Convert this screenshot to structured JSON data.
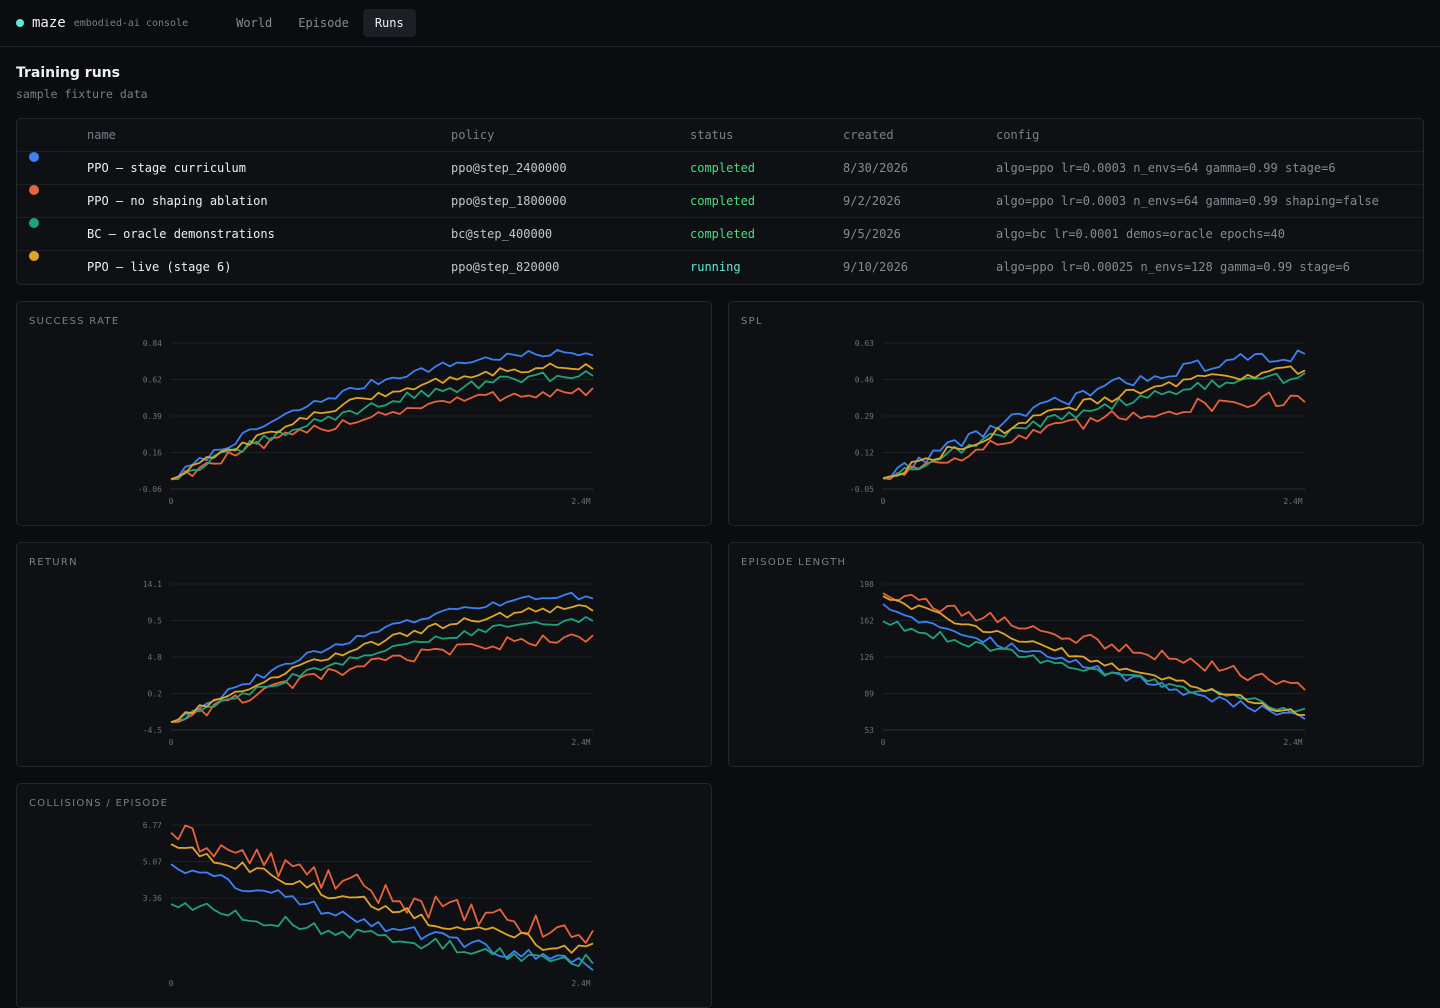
{
  "app": {
    "name": "maze",
    "subtitle": "embodied-ai console"
  },
  "nav": {
    "tabs": [
      {
        "label": "World"
      },
      {
        "label": "Episode"
      },
      {
        "label": "Runs",
        "active": true
      }
    ]
  },
  "page": {
    "title": "Training runs",
    "subtitle": "sample fixture data"
  },
  "table": {
    "columns": {
      "name": "name",
      "policy": "policy",
      "status": "status",
      "created": "created",
      "config": "config"
    },
    "rows": [
      {
        "color": "#3b82f6",
        "name": "PPO — stage curriculum",
        "policy": "ppo@step_2400000",
        "status": "completed",
        "created": "8/30/2026",
        "config": "algo=ppo lr=0.0003 n_envs=64 gamma=0.99 stage=6"
      },
      {
        "color": "#e8633a",
        "name": "PPO — no shaping ablation",
        "policy": "ppo@step_1800000",
        "status": "completed",
        "created": "9/2/2026",
        "config": "algo=ppo lr=0.0003 n_envs=64 gamma=0.99 shaping=false"
      },
      {
        "color": "#1fa37a",
        "name": "BC — oracle demonstrations",
        "policy": "bc@step_400000",
        "status": "completed",
        "created": "9/5/2026",
        "config": "algo=bc lr=0.0001 demos=oracle epochs=40"
      },
      {
        "color": "#e0a526",
        "name": "PPO — live (stage 6)",
        "policy": "ppo@step_820000",
        "status": "running",
        "created": "9/10/2026",
        "config": "algo=ppo lr=0.00025 n_envs=128 gamma=0.99 stage=6"
      }
    ],
    "status_colors": {
      "completed": "#4ade80",
      "running": "#5eead4"
    }
  },
  "chart_data": [
    {
      "type": "line",
      "title": "SUCCESS RATE",
      "ylim": [
        -0.06,
        0.84
      ],
      "yticks": [
        "0.84",
        "0.62",
        "0.39",
        "0.16",
        "-0.06"
      ],
      "xticks": [
        "0",
        "2.4M"
      ],
      "xlim": [
        0,
        2.4
      ],
      "series": [
        {
          "color": "#3b82f6",
          "start": 0.0,
          "end": 0.78,
          "curve": 2.2,
          "noise": 0.008
        },
        {
          "color": "#e8633a",
          "start": 0.0,
          "end": 0.54,
          "curve": 2.0,
          "noise": 0.012
        },
        {
          "color": "#1fa37a",
          "start": 0.0,
          "end": 0.64,
          "curve": 1.9,
          "noise": 0.01
        },
        {
          "color": "#e0a526",
          "start": 0.0,
          "end": 0.7,
          "curve": 2.0,
          "noise": 0.008
        }
      ]
    },
    {
      "type": "line",
      "title": "SPL",
      "ylim": [
        -0.05,
        0.63
      ],
      "yticks": [
        "0.63",
        "0.46",
        "0.29",
        "0.12",
        "-0.05"
      ],
      "xticks": [
        "0",
        "2.4M"
      ],
      "xlim": [
        0,
        2.4
      ],
      "series": [
        {
          "color": "#3b82f6",
          "start": 0.0,
          "end": 0.57,
          "curve": 1.8,
          "noise": 0.01
        },
        {
          "color": "#e8633a",
          "start": 0.0,
          "end": 0.37,
          "curve": 1.8,
          "noise": 0.012
        },
        {
          "color": "#1fa37a",
          "start": 0.0,
          "end": 0.47,
          "curve": 1.7,
          "noise": 0.008
        },
        {
          "color": "#e0a526",
          "start": 0.0,
          "end": 0.5,
          "curve": 1.8,
          "noise": 0.008
        }
      ]
    },
    {
      "type": "line",
      "title": "RETURN",
      "ylim": [
        -4.5,
        14.1
      ],
      "yticks": [
        "14.1",
        "9.5",
        "4.8",
        "0.2",
        "-4.5"
      ],
      "xticks": [
        "0",
        "2.4M"
      ],
      "xlim": [
        0,
        2.4
      ],
      "series": [
        {
          "color": "#3b82f6",
          "start": -3.5,
          "end": 12.6,
          "curve": 1.9,
          "noise": 0.15
        },
        {
          "color": "#e8633a",
          "start": -3.5,
          "end": 7.2,
          "curve": 1.8,
          "noise": 0.25
        },
        {
          "color": "#1fa37a",
          "start": -3.5,
          "end": 9.5,
          "curve": 1.7,
          "noise": 0.15
        },
        {
          "color": "#e0a526",
          "start": -3.5,
          "end": 11.1,
          "curve": 1.8,
          "noise": 0.15
        }
      ]
    },
    {
      "type": "line",
      "title": "EPISODE LENGTH",
      "ylim": [
        53,
        198
      ],
      "yticks": [
        "198",
        "162",
        "126",
        "89",
        "53"
      ],
      "xticks": [
        "0",
        "2.4M"
      ],
      "xlim": [
        0,
        2.4
      ],
      "series": [
        {
          "color": "#3b82f6",
          "start": 178,
          "end": 63,
          "curve": 0.85,
          "noise": 1.5
        },
        {
          "color": "#e8633a",
          "start": 189,
          "end": 96,
          "curve": 0.95,
          "noise": 2.0
        },
        {
          "color": "#1fa37a",
          "start": 161,
          "end": 71,
          "curve": 0.9,
          "noise": 1.5
        },
        {
          "color": "#e0a526",
          "start": 186,
          "end": 68,
          "curve": 0.9,
          "noise": 1.2
        }
      ]
    },
    {
      "type": "line",
      "title": "COLLISIONS / EPISODE",
      "ylim": [
        1.66,
        6.77
      ],
      "yticks": [
        "6.77",
        "5.07",
        "3.36"
      ],
      "xticks": [
        "0",
        "2.4M"
      ],
      "xlim": [
        0,
        2.4
      ],
      "series": [
        {
          "color": "#3b82f6",
          "start": 5.4,
          "end": 1.9,
          "curve": 1.3,
          "noise": 0.08
        },
        {
          "color": "#e8633a",
          "start": 6.5,
          "end": 2.9,
          "curve": 1.3,
          "noise": 0.15
        },
        {
          "color": "#1fa37a",
          "start": 4.0,
          "end": 2.0,
          "curve": 1.3,
          "noise": 0.08
        },
        {
          "color": "#e0a526",
          "start": 6.1,
          "end": 2.4,
          "curve": 1.3,
          "noise": 0.08
        }
      ]
    }
  ]
}
